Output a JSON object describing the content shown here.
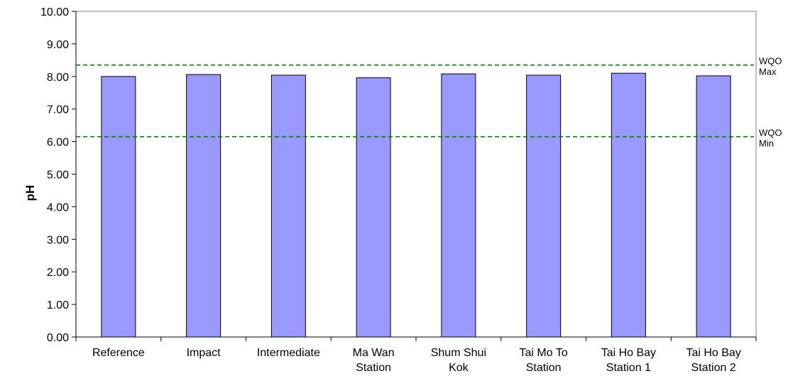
{
  "chart_data": {
    "type": "bar",
    "title": "",
    "xlabel": "",
    "ylabel": "pH",
    "ylim": [
      0,
      10
    ],
    "yticks": [
      "0.00",
      "1.00",
      "2.00",
      "3.00",
      "4.00",
      "5.00",
      "6.00",
      "7.00",
      "8.00",
      "9.00",
      "10.00"
    ],
    "grid": false,
    "legend": "none",
    "categories": [
      [
        "Reference"
      ],
      [
        "Impact"
      ],
      [
        "Intermediate"
      ],
      [
        "Ma Wan",
        "Station"
      ],
      [
        "Shum Shui",
        "Kok"
      ],
      [
        "Tai Mo To",
        "Station"
      ],
      [
        "Tai Ho Bay",
        "Station 1"
      ],
      [
        "Tai Ho Bay",
        "Station 2"
      ]
    ],
    "values": [
      8.0,
      8.06,
      8.04,
      7.96,
      8.08,
      8.04,
      8.1,
      8.02
    ],
    "bar_color": "#9999ff",
    "reference_lines": [
      {
        "value": 8.35,
        "label": [
          "WQO",
          "Max"
        ],
        "color": "#008000",
        "style": "dashed"
      },
      {
        "value": 6.15,
        "label": [
          "WQO",
          "Min"
        ],
        "color": "#008000",
        "style": "dashed"
      }
    ]
  }
}
